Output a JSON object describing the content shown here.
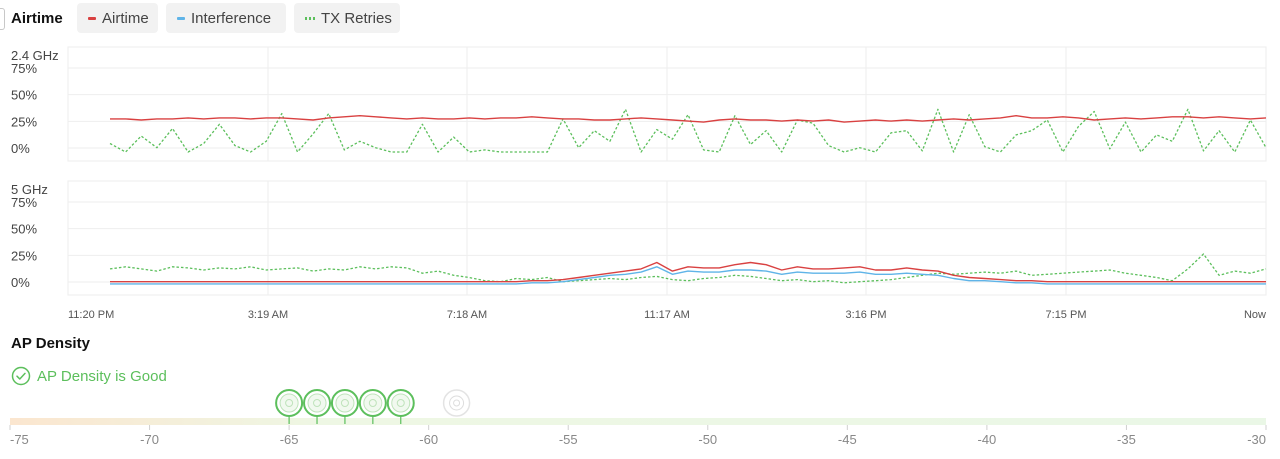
{
  "header": {
    "title": "Airtime",
    "legend": [
      {
        "label": "Airtime",
        "color": "#d94141",
        "style": "solid"
      },
      {
        "label": "Interference",
        "color": "#5fb4e8",
        "style": "solid"
      },
      {
        "label": "TX Retries",
        "color": "#5cbf5c",
        "style": "dotted"
      }
    ]
  },
  "chart_data": [
    {
      "type": "line",
      "title": "2.4 GHz",
      "yticks": [
        "75%",
        "50%",
        "25%",
        "0%"
      ],
      "ylim": [
        0,
        100
      ],
      "xticks": [
        "11:20 PM",
        "3:19 AM",
        "7:18 AM",
        "11:17 AM",
        "3:16 PM",
        "7:15 PM",
        "Now"
      ],
      "grid": true,
      "series": [
        {
          "name": "Airtime",
          "color": "#d94141",
          "style": "solid",
          "values": [
            31,
            31,
            30,
            31,
            31,
            32,
            31,
            32,
            32,
            31,
            32,
            32,
            31,
            30,
            32,
            33,
            34,
            33,
            32,
            31,
            32,
            31,
            31,
            32,
            31,
            32,
            32,
            33,
            32,
            31,
            31,
            30,
            30,
            31,
            32,
            31,
            30,
            29,
            28,
            30,
            31,
            30,
            30,
            29,
            30,
            29,
            30,
            28,
            29,
            30,
            29,
            30,
            29,
            30,
            31,
            30,
            31,
            32,
            34,
            32,
            32,
            33,
            32,
            30,
            31,
            32,
            31,
            32,
            33,
            33,
            32,
            33,
            32,
            31,
            32
          ]
        },
        {
          "name": "TX Retries",
          "color": "#5cbf5c",
          "style": "dotted",
          "values": [
            8,
            0,
            15,
            4,
            22,
            0,
            8,
            26,
            6,
            0,
            10,
            36,
            0,
            17,
            36,
            2,
            10,
            4,
            0,
            0,
            26,
            0,
            14,
            0,
            2,
            0,
            0,
            0,
            0,
            31,
            4,
            20,
            10,
            40,
            0,
            21,
            12,
            35,
            2,
            0,
            34,
            7,
            20,
            0,
            30,
            27,
            6,
            0,
            4,
            0,
            18,
            20,
            1,
            40,
            0,
            35,
            5,
            0,
            16,
            20,
            30,
            0,
            24,
            38,
            3,
            28,
            0,
            16,
            10,
            40,
            1,
            20,
            0,
            30,
            4
          ]
        }
      ]
    },
    {
      "type": "line",
      "title": "5 GHz",
      "yticks": [
        "75%",
        "50%",
        "25%",
        "0%"
      ],
      "ylim": [
        0,
        100
      ],
      "xticks": [
        "11:20 PM",
        "3:19 AM",
        "7:18 AM",
        "11:17 AM",
        "3:16 PM",
        "7:15 PM",
        "Now"
      ],
      "grid": true,
      "series": [
        {
          "name": "Airtime",
          "color": "#d94141",
          "style": "solid",
          "values": [
            4,
            4,
            4,
            4,
            4,
            4,
            4,
            4,
            4,
            4,
            4,
            4,
            4,
            4,
            4,
            4,
            4,
            4,
            4,
            4,
            4,
            4,
            4,
            4,
            4,
            4,
            4,
            5,
            5,
            6,
            8,
            10,
            12,
            14,
            16,
            22,
            14,
            18,
            17,
            17,
            20,
            22,
            20,
            15,
            18,
            16,
            16,
            17,
            18,
            15,
            15,
            17,
            15,
            14,
            10,
            8,
            7,
            6,
            5,
            5,
            4,
            4,
            4,
            4,
            4,
            4,
            4,
            4,
            4,
            4,
            4,
            4,
            4,
            4,
            4
          ]
        },
        {
          "name": "Interference",
          "color": "#5fb4e8",
          "style": "solid",
          "values": [
            2,
            2,
            2,
            2,
            2,
            2,
            2,
            2,
            2,
            2,
            2,
            2,
            2,
            2,
            2,
            2,
            2,
            2,
            2,
            2,
            2,
            2,
            2,
            2,
            2,
            2,
            2,
            3,
            3,
            4,
            6,
            8,
            10,
            11,
            13,
            18,
            11,
            14,
            13,
            13,
            15,
            15,
            14,
            11,
            13,
            12,
            12,
            12,
            13,
            11,
            11,
            12,
            11,
            10,
            7,
            5,
            5,
            4,
            3,
            3,
            2,
            2,
            2,
            2,
            2,
            2,
            2,
            2,
            2,
            2,
            2,
            2,
            2,
            2,
            2
          ]
        },
        {
          "name": "TX Retries",
          "color": "#5cbf5c",
          "style": "dotted",
          "values": [
            16,
            18,
            16,
            14,
            18,
            17,
            15,
            17,
            16,
            18,
            15,
            16,
            17,
            14,
            16,
            15,
            18,
            16,
            18,
            17,
            12,
            14,
            10,
            8,
            5,
            4,
            7,
            6,
            8,
            4,
            5,
            6,
            7,
            6,
            8,
            9,
            6,
            5,
            7,
            8,
            10,
            9,
            7,
            5,
            6,
            4,
            5,
            3,
            4,
            5,
            6,
            8,
            10,
            12,
            11,
            12,
            13,
            12,
            14,
            10,
            11,
            12,
            13,
            14,
            15,
            12,
            10,
            8,
            5,
            16,
            30,
            10,
            14,
            12,
            16
          ]
        }
      ]
    }
  ],
  "ap_density": {
    "title": "AP Density",
    "status": "AP Density is Good",
    "status_color": "#5cbf5c",
    "axis_ticks": [
      "-75",
      "-70",
      "-65",
      "-60",
      "-55",
      "-50",
      "-45",
      "-40",
      "-35",
      "-30"
    ],
    "axis_range": [
      -75,
      -30
    ],
    "aps_good_dbm": [
      -65,
      -64,
      -63,
      -62,
      -61
    ],
    "aps_weak_dbm": [
      -59
    ]
  }
}
